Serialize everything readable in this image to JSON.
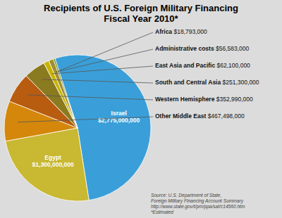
{
  "chart_data": {
    "type": "pie",
    "title": "Recipients of U.S. Foreign Military Financing\nFiscal Year 2010*",
    "categories": [
      "Israel",
      "Egypt",
      "Other Middle East",
      "Western Hemisphere",
      "South and Central Asia",
      "East Asia and Pacific",
      "Administrative costs",
      "Africa"
    ],
    "values": [
      2775000000,
      1300000000,
      467498000,
      352990000,
      251300000,
      62100000,
      56583000,
      18793000
    ],
    "value_labels": [
      "$2,775,000,000",
      "$1,300,000,000",
      "$467,498,000",
      "$352,990,000",
      "$251,300,000",
      "$62,100,000",
      "$56,583,000",
      "$18,793,000"
    ],
    "colors": [
      "#3a9fd8",
      "#c8b832",
      "#d4870a",
      "#b85c10",
      "#8a7a20",
      "#c8b400",
      "#a09030",
      "#6b8c1a"
    ],
    "data_labels": true,
    "annotations": [
      "Source: U.S. Department of State,\nForeign Military Financing Account Summary\nhttp://www.state.gov/t/pm/ppa/sat/c14560.htm\n*Estimated"
    ]
  }
}
